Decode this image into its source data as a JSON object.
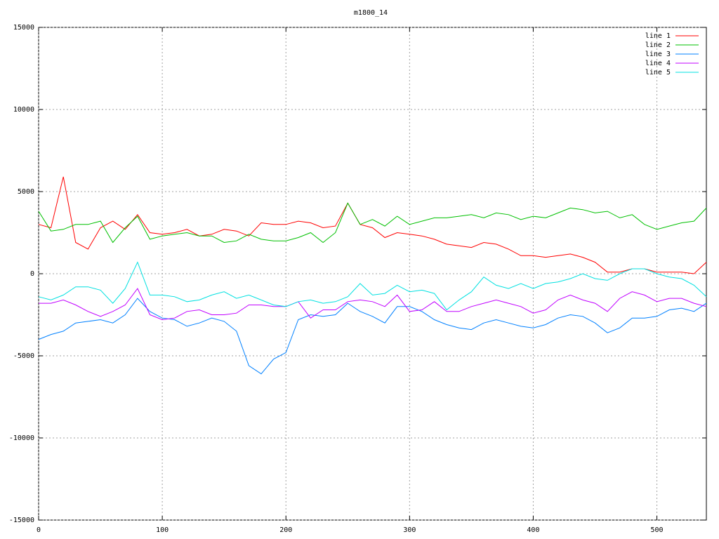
{
  "chart_data": {
    "type": "line",
    "title": "m1800_14",
    "x": [
      0,
      10,
      20,
      30,
      40,
      50,
      60,
      70,
      80,
      90,
      100,
      110,
      120,
      130,
      140,
      150,
      160,
      170,
      180,
      190,
      200,
      210,
      220,
      230,
      240,
      250,
      260,
      270,
      280,
      290,
      300,
      310,
      320,
      330,
      340,
      350,
      360,
      370,
      380,
      390,
      400,
      410,
      420,
      430,
      440,
      450,
      460,
      470,
      480,
      490,
      500,
      510,
      520,
      530,
      540
    ],
    "series": [
      {
        "name": "line 1",
        "color": "#ff0000",
        "values": [
          3000,
          2800,
          5900,
          1900,
          1500,
          2800,
          3200,
          2700,
          3600,
          2500,
          2400,
          2500,
          2700,
          2300,
          2400,
          2700,
          2600,
          2300,
          3100,
          3000,
          3000,
          3200,
          3100,
          2800,
          2900,
          4300,
          3000,
          2800,
          2200,
          2500,
          2400,
          2300,
          2100,
          1800,
          1700,
          1600,
          1900,
          1800,
          1500,
          1100,
          1100,
          1000,
          1100,
          1200,
          1000,
          700,
          100,
          100,
          300,
          300,
          100,
          100,
          100,
          0,
          700
        ]
      },
      {
        "name": "line 2",
        "color": "#00c000",
        "values": [
          3800,
          2600,
          2700,
          3000,
          3000,
          3200,
          1900,
          2800,
          3500,
          2100,
          2300,
          2400,
          2500,
          2300,
          2300,
          1900,
          2000,
          2400,
          2100,
          2000,
          2000,
          2200,
          2500,
          1900,
          2500,
          4300,
          3000,
          3300,
          2900,
          3500,
          3000,
          3200,
          3400,
          3400,
          3500,
          3600,
          3400,
          3700,
          3600,
          3300,
          3500,
          3400,
          3700,
          4000,
          3900,
          3700,
          3800,
          3400,
          3600,
          3000,
          2700,
          2900,
          3100,
          3200,
          4000
        ]
      },
      {
        "name": "line 3",
        "color": "#0080ff",
        "values": [
          -4000,
          -3700,
          -3500,
          -3000,
          -2900,
          -2800,
          -3000,
          -2500,
          -1500,
          -2300,
          -2700,
          -2800,
          -3200,
          -3000,
          -2700,
          -2900,
          -3500,
          -5600,
          -6100,
          -5200,
          -4800,
          -2800,
          -2500,
          -2600,
          -2500,
          -1800,
          -2300,
          -2600,
          -3000,
          -2000,
          -2000,
          -2300,
          -2800,
          -3100,
          -3300,
          -3400,
          -3000,
          -2800,
          -3000,
          -3200,
          -3300,
          -3100,
          -2700,
          -2500,
          -2600,
          -3000,
          -3600,
          -3300,
          -2700,
          -2700,
          -2600,
          -2200,
          -2100,
          -2300,
          -1800
        ]
      },
      {
        "name": "line 4",
        "color": "#c000ff",
        "values": [
          -1800,
          -1800,
          -1600,
          -1900,
          -2300,
          -2600,
          -2300,
          -1900,
          -900,
          -2500,
          -2800,
          -2700,
          -2300,
          -2200,
          -2500,
          -2500,
          -2400,
          -1900,
          -1900,
          -2000,
          -2000,
          -1700,
          -2700,
          -2200,
          -2200,
          -1700,
          -1600,
          -1700,
          -2000,
          -1300,
          -2300,
          -2200,
          -1700,
          -2300,
          -2300,
          -2000,
          -1800,
          -1600,
          -1800,
          -2000,
          -2400,
          -2200,
          -1600,
          -1300,
          -1600,
          -1800,
          -2300,
          -1500,
          -1100,
          -1300,
          -1700,
          -1500,
          -1500,
          -1800,
          -2000
        ]
      },
      {
        "name": "line 5",
        "color": "#00e0e0",
        "values": [
          -1400,
          -1600,
          -1300,
          -800,
          -800,
          -1000,
          -1800,
          -900,
          700,
          -1300,
          -1300,
          -1400,
          -1700,
          -1600,
          -1300,
          -1100,
          -1500,
          -1300,
          -1600,
          -1900,
          -2000,
          -1700,
          -1600,
          -1800,
          -1700,
          -1400,
          -600,
          -1300,
          -1200,
          -700,
          -1100,
          -1000,
          -1200,
          -2200,
          -1600,
          -1100,
          -200,
          -700,
          -900,
          -600,
          -900,
          -600,
          -500,
          -300,
          0,
          -300,
          -400,
          0,
          300,
          300,
          0,
          -200,
          -300,
          -700,
          -1400
        ]
      }
    ],
    "xlim": [
      0,
      540
    ],
    "xticks": [
      0,
      100,
      200,
      300,
      400,
      500
    ],
    "ylim": [
      -15000,
      15000
    ],
    "yticks": [
      -15000,
      -10000,
      -5000,
      0,
      5000,
      10000,
      15000
    ],
    "grid": true,
    "legend": "top-right"
  }
}
